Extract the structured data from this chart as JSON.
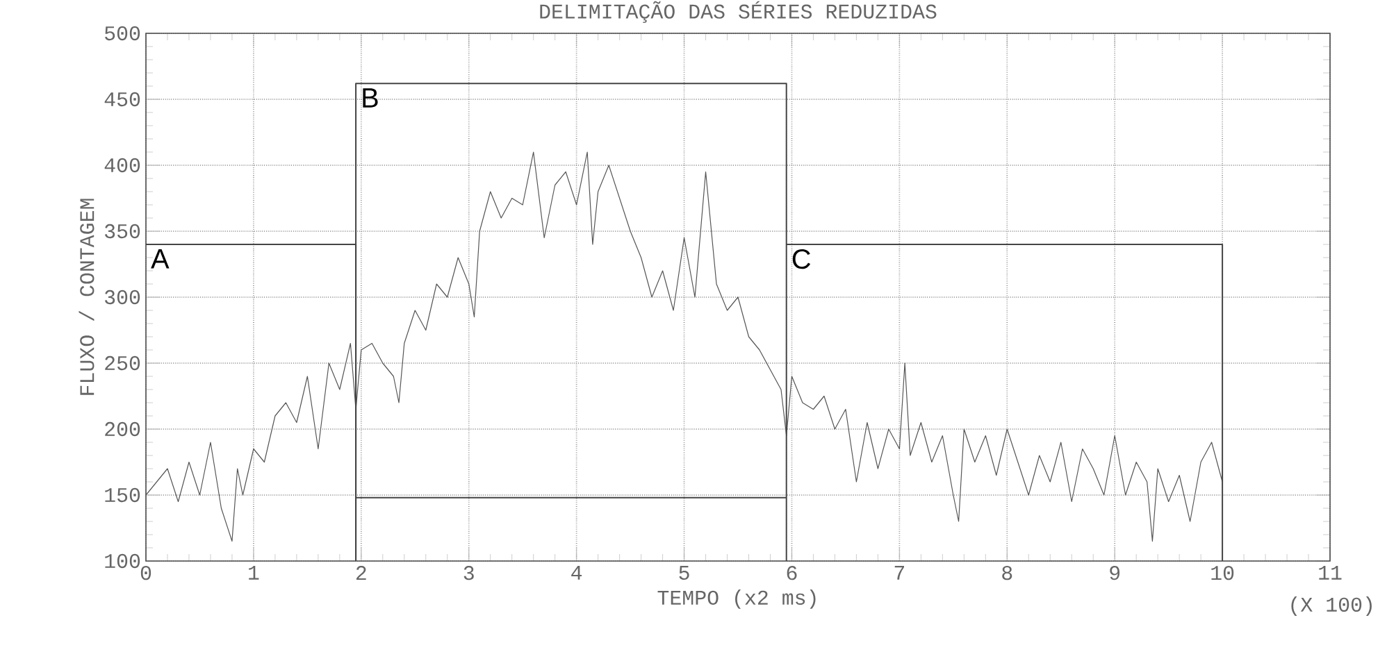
{
  "chart_data": {
    "type": "line",
    "title": "DELIMITAÇÃO DAS SÉRIES REDUZIDAS",
    "xlabel": "TEMPO (x2 ms)",
    "ylabel": "FLUXO / CONTAGEM",
    "annotations": [
      "(X 100)"
    ],
    "xlim": [
      0,
      11
    ],
    "xticks": [
      0,
      1,
      2,
      3,
      4,
      5,
      6,
      7,
      8,
      9,
      10,
      11
    ],
    "ylim": [
      100,
      500
    ],
    "yticks": [
      100,
      150,
      200,
      250,
      300,
      350,
      400,
      450,
      500
    ],
    "grid": true,
    "legend": false,
    "marker": "none",
    "series": [
      {
        "color": "#555555",
        "x": [
          0,
          0.1,
          0.2,
          0.3,
          0.4,
          0.5,
          0.6,
          0.7,
          0.8,
          0.85,
          0.9,
          1.0,
          1.1,
          1.2,
          1.3,
          1.4,
          1.5,
          1.6,
          1.7,
          1.8,
          1.9,
          1.95,
          2.0,
          2.1,
          2.2,
          2.3,
          2.35,
          2.4,
          2.5,
          2.6,
          2.7,
          2.8,
          2.9,
          3.0,
          3.05,
          3.1,
          3.2,
          3.3,
          3.4,
          3.5,
          3.6,
          3.7,
          3.8,
          3.9,
          4.0,
          4.1,
          4.15,
          4.2,
          4.3,
          4.4,
          4.5,
          4.6,
          4.7,
          4.8,
          4.9,
          5.0,
          5.1,
          5.2,
          5.3,
          5.4,
          5.5,
          5.6,
          5.7,
          5.8,
          5.9,
          5.95,
          6.0,
          6.1,
          6.2,
          6.3,
          6.4,
          6.5,
          6.6,
          6.7,
          6.8,
          6.9,
          7.0,
          7.05,
          7.1,
          7.2,
          7.3,
          7.4,
          7.5,
          7.55,
          7.6,
          7.7,
          7.8,
          7.9,
          8.0,
          8.1,
          8.2,
          8.3,
          8.4,
          8.5,
          8.6,
          8.7,
          8.8,
          8.9,
          9.0,
          9.1,
          9.2,
          9.3,
          9.35,
          9.4,
          9.5,
          9.6,
          9.7,
          9.8,
          9.9,
          10.0
        ],
        "values": [
          150,
          160,
          170,
          145,
          175,
          150,
          190,
          140,
          115,
          170,
          150,
          185,
          175,
          210,
          220,
          205,
          240,
          185,
          250,
          230,
          265,
          215,
          260,
          265,
          250,
          240,
          220,
          265,
          290,
          275,
          310,
          300,
          330,
          310,
          285,
          350,
          380,
          360,
          375,
          370,
          410,
          345,
          385,
          395,
          370,
          410,
          340,
          380,
          400,
          375,
          350,
          330,
          300,
          320,
          290,
          345,
          300,
          395,
          310,
          290,
          300,
          270,
          260,
          245,
          230,
          195,
          240,
          220,
          215,
          225,
          200,
          215,
          160,
          205,
          170,
          200,
          185,
          250,
          180,
          205,
          175,
          195,
          150,
          130,
          200,
          175,
          195,
          165,
          200,
          175,
          150,
          180,
          160,
          190,
          145,
          185,
          170,
          150,
          195,
          150,
          175,
          160,
          115,
          170,
          145,
          165,
          130,
          175,
          190,
          160
        ]
      },
      {
        "name": "A",
        "color": "#444444",
        "x": [
          0,
          1.95,
          1.95
        ],
        "values": [
          340,
          340,
          100
        ]
      },
      {
        "name": "B",
        "color": "#444444",
        "x": [
          1.95,
          1.95,
          5.95,
          5.95,
          5.95,
          1.95
        ],
        "values": [
          100,
          462,
          462,
          100,
          148,
          148
        ]
      },
      {
        "name": "C",
        "color": "#444444",
        "x": [
          5.95,
          10,
          10
        ],
        "values": [
          340,
          340,
          100
        ]
      }
    ]
  }
}
